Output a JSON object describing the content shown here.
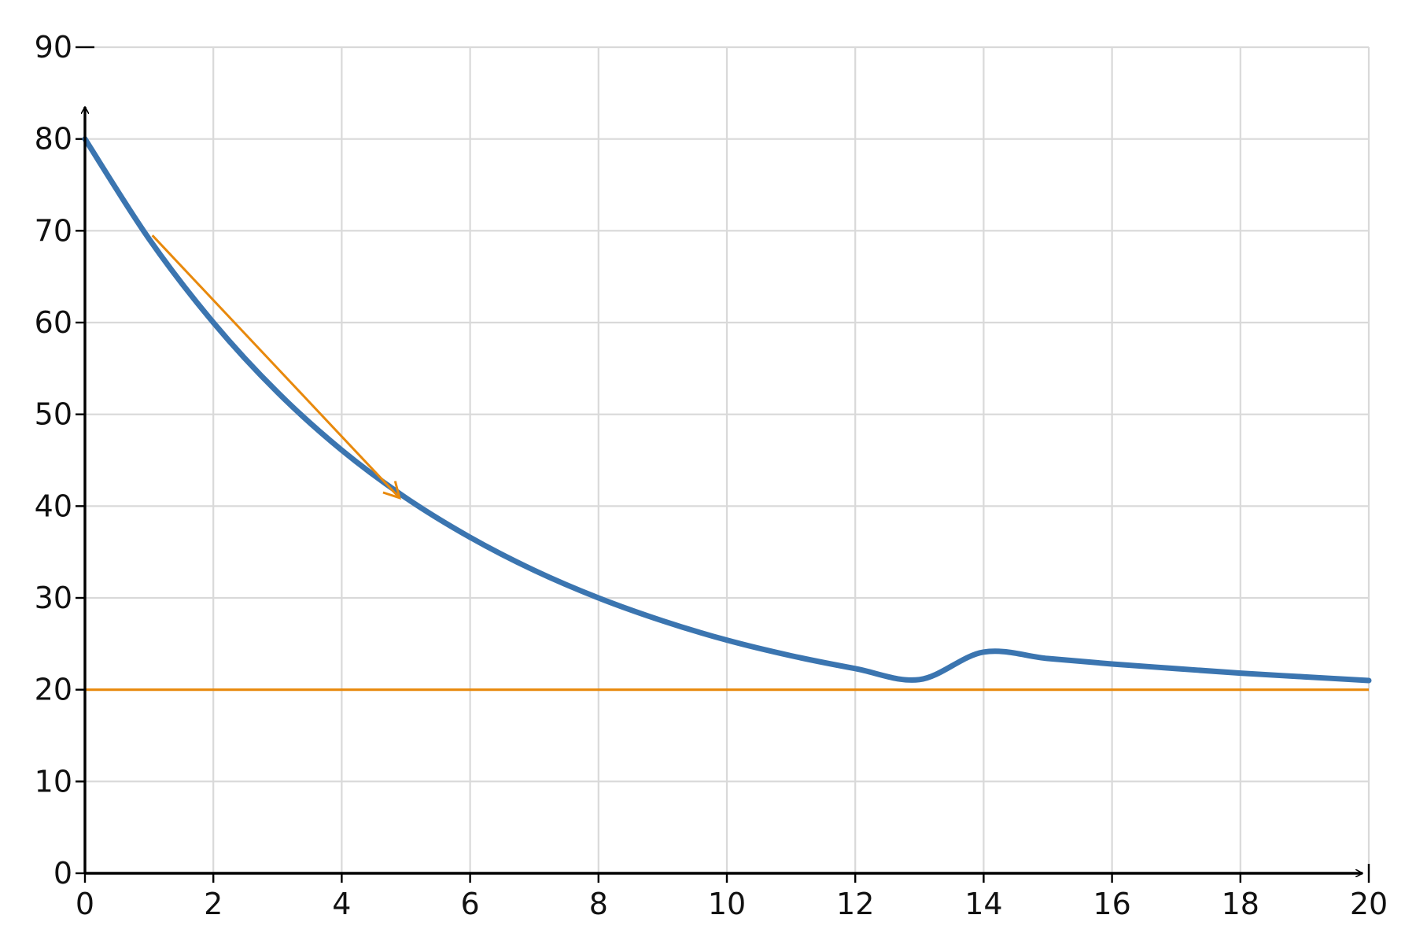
{
  "chart_data": {
    "type": "line",
    "title": "",
    "xlabel": "",
    "ylabel": "",
    "xlim": [
      0,
      20
    ],
    "ylim": [
      0,
      90
    ],
    "x_ticks": [
      0,
      2,
      4,
      6,
      8,
      10,
      12,
      14,
      16,
      18,
      20
    ],
    "y_ticks": [
      0,
      10,
      20,
      30,
      40,
      50,
      60,
      70,
      80,
      90
    ],
    "grid": true,
    "legend": "none",
    "series": [
      {
        "kind": "curve",
        "color": "#3b75b0",
        "x": [
          0,
          1,
          2,
          3,
          4,
          5,
          6,
          7,
          8,
          9,
          10,
          11,
          12,
          13,
          14,
          15,
          16,
          17,
          18,
          19,
          20
        ],
        "y": [
          80.0,
          69.1,
          60.0,
          52.4,
          46.1,
          40.9,
          36.6,
          33.0,
          30.0,
          27.5,
          25.4,
          23.7,
          22.3,
          21.1,
          24.1,
          23.4,
          22.8,
          22.3,
          21.8,
          21.4,
          21.0
        ]
      },
      {
        "kind": "asymptote",
        "color": "#e8890c",
        "x": [
          0,
          20
        ],
        "y": [
          20,
          20
        ]
      }
    ],
    "annotations": [
      {
        "kind": "tangent-arrow",
        "color": "#e8890c",
        "from": [
          1.05,
          69.5
        ],
        "to": [
          4.9,
          40.9
        ]
      }
    ]
  }
}
